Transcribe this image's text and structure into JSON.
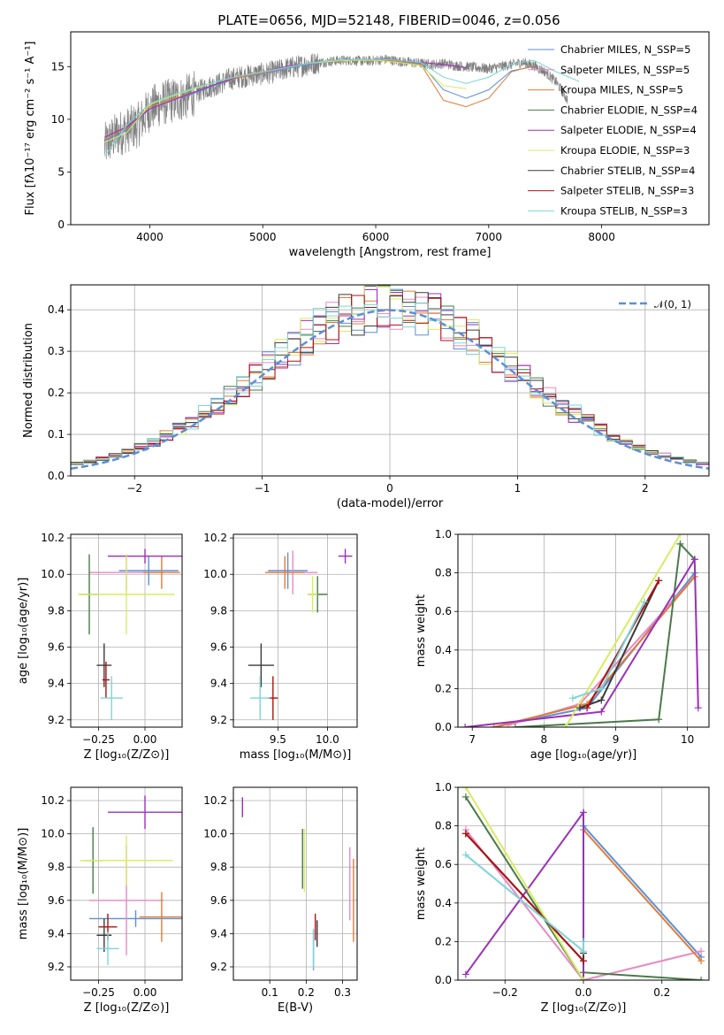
{
  "colors": [
    "#5b8fd8",
    "#e78ac3",
    "#e07b39",
    "#4a7a4a",
    "#9b30b8",
    "#d8ec60",
    "#3a3a3a",
    "#b01010",
    "#7dd4d8"
  ],
  "chart_data": [
    {
      "id": "spectrum",
      "type": "line",
      "title": "PLATE=0656, MJD=52148, FIBERID=0046, z=0.056",
      "xlabel": "wavelength [Angstrom, rest frame]",
      "ylabel": "Flux [fλ10⁻¹⁷ erg cm⁻² s⁻¹ A⁻¹]",
      "xlim": [
        3300,
        8950
      ],
      "ylim": [
        0,
        18.3
      ],
      "xticks": [
        4000,
        5000,
        6000,
        7000,
        8000
      ],
      "yticks": [
        0,
        5,
        10,
        15
      ],
      "grid": false,
      "legend_position": "top-right",
      "legend": [
        "Chabrier MILES, N_SSP=5",
        "Salpeter MILES, N_SSP=5",
        "Kroupa MILES, N_SSP=5",
        "Chabrier ELODIE, N_SSP=4",
        "Salpeter ELODIE, N_SSP=4",
        "Kroupa ELODIE, N_SSP=3",
        "Chabrier STELIB, N_SSP=4",
        "Salpeter STELIB, N_SSP=3",
        "Kroupa STELIB, N_SSP=3"
      ],
      "data_series": {
        "name": "",
        "color": "#808080",
        "x": [
          3600,
          3700,
          3800,
          3900,
          4000,
          4100,
          4200,
          4300,
          4400,
          4500,
          4600,
          4700,
          4800,
          4900,
          5000,
          5100,
          5200,
          5300,
          5400,
          5500,
          5600,
          5700,
          5800,
          5900,
          6000,
          6100,
          6200,
          6300,
          6400,
          6500,
          6600,
          6700,
          6800,
          6900,
          7000,
          7100,
          7200,
          7300,
          7400,
          7500,
          7600,
          7700
        ],
        "y": [
          7.5,
          8.5,
          9.0,
          9.5,
          11.0,
          11.5,
          11.8,
          12.0,
          12.5,
          13.0,
          13.3,
          13.8,
          14.0,
          14.2,
          14.3,
          14.5,
          14.8,
          15.0,
          15.2,
          15.4,
          15.5,
          15.6,
          15.6,
          15.5,
          15.6,
          15.7,
          15.5,
          15.4,
          15.3,
          15.2,
          15.3,
          15.1,
          15.0,
          14.9,
          14.8,
          15.0,
          15.2,
          15.4,
          15.1,
          14.5,
          13.5,
          11.8
        ]
      },
      "model_series": [
        {
          "name": "Chabrier MILES",
          "x": [
            3600,
            3800,
            4000,
            4200,
            4400,
            4600,
            4800,
            5000,
            5200,
            5400,
            5600,
            5800,
            6000,
            6200,
            6400,
            6600,
            6800,
            7000,
            7200,
            7400
          ],
          "y": [
            8.0,
            9.0,
            11.0,
            11.8,
            12.5,
            13.3,
            14.0,
            14.3,
            14.8,
            15.2,
            15.5,
            15.6,
            15.6,
            15.5,
            15.3,
            12.8,
            12.0,
            12.8,
            14.6,
            15.0
          ]
        },
        {
          "name": "Kroupa MILES",
          "x": [
            3600,
            3800,
            4000,
            4200,
            4400,
            4600,
            4800,
            5000,
            5200,
            5400,
            5600,
            5800,
            6000,
            6200,
            6400,
            6600,
            6800,
            7000,
            7200,
            7400
          ],
          "y": [
            8.2,
            9.2,
            11.2,
            11.9,
            12.6,
            13.4,
            14.0,
            14.4,
            14.9,
            15.3,
            15.5,
            15.6,
            15.6,
            15.5,
            15.2,
            11.8,
            11.2,
            12.0,
            14.5,
            15.1
          ]
        },
        {
          "name": "Salpeter ELODIE",
          "x": [
            3600,
            3800,
            4000,
            4200,
            4400,
            4600,
            4800,
            5000,
            5200,
            5400,
            5600,
            5800,
            6000,
            6200,
            6400,
            6600,
            6800
          ],
          "y": [
            8.3,
            9.3,
            11.0,
            11.8,
            12.6,
            13.4,
            14.1,
            14.5,
            15.0,
            15.3,
            15.5,
            15.6,
            15.7,
            15.6,
            15.4,
            15.2,
            14.9
          ]
        },
        {
          "name": "Kroupa ELODIE",
          "x": [
            3600,
            3800,
            4000,
            4200,
            4400,
            4600,
            4800,
            5000,
            5200,
            5400,
            5600,
            5800,
            6000,
            6200,
            6400,
            6600,
            6800
          ],
          "y": [
            7.8,
            8.8,
            11.4,
            12.2,
            12.9,
            13.6,
            14.1,
            14.5,
            14.9,
            15.3,
            15.5,
            15.6,
            15.6,
            15.4,
            15.1,
            13.2,
            12.9
          ]
        },
        {
          "name": "Kroupa STELIB",
          "x": [
            3600,
            3800,
            4000,
            4200,
            4400,
            4600,
            4800,
            5000,
            5200,
            5400,
            5600,
            5800,
            6000,
            6200,
            6400,
            6600,
            6800,
            7000,
            7200,
            7400,
            7600,
            7800
          ],
          "y": [
            6.5,
            9.5,
            11.5,
            12.3,
            13.0,
            13.6,
            14.1,
            14.5,
            14.9,
            15.3,
            15.6,
            15.7,
            15.7,
            15.6,
            15.4,
            14.0,
            13.4,
            14.0,
            15.2,
            15.6,
            14.5,
            13.6
          ]
        }
      ]
    },
    {
      "id": "residuals",
      "type": "step",
      "xlabel": "(data-model)/error",
      "ylabel": "Normed distribution",
      "xlim": [
        -2.5,
        2.5
      ],
      "ylim": [
        0,
        0.46
      ],
      "xticks": [
        -2,
        -1,
        0,
        1,
        2
      ],
      "yticks": [
        0.0,
        0.1,
        0.2,
        0.3,
        0.4
      ],
      "grid": true,
      "legend_position": "top-right",
      "legend": [
        "𝒩(0, 1)"
      ],
      "bin_width": 0.1,
      "bin_start": -2.5
    },
    {
      "id": "age-vs-Z",
      "type": "errorbar",
      "xlabel": "Z [log₁₀(Z/Z⊙)]",
      "ylabel": "age  [log₁₀(age/yr)]",
      "xlim": [
        -0.4,
        0.2
      ],
      "ylim": [
        9.16,
        10.22
      ],
      "xticks": [
        -0.25,
        0.0
      ],
      "xticklabels": [
        "−0.25",
        "0.00"
      ],
      "yticks": [
        9.2,
        9.4,
        9.6,
        9.8,
        10.0,
        10.2
      ],
      "grid": true,
      "points": [
        {
          "x": 0.02,
          "y": 10.02,
          "xe": 0.16,
          "ye": 0.08,
          "c": 0
        },
        {
          "x": -0.1,
          "y": 10.01,
          "xe": 0.2,
          "ye": 0.1,
          "c": 1
        },
        {
          "x": 0.09,
          "y": 10.01,
          "xe": 0.1,
          "ye": 0.09,
          "c": 2
        },
        {
          "x": -0.3,
          "y": 9.89,
          "xe": 0.05,
          "ye": 0.22,
          "c": 3
        },
        {
          "x": 0.0,
          "y": 10.1,
          "xe": 0.2,
          "ye": 0.04,
          "c": 4
        },
        {
          "x": -0.1,
          "y": 9.89,
          "xe": 0.26,
          "ye": 0.22,
          "c": 5
        },
        {
          "x": -0.22,
          "y": 9.5,
          "xe": 0.04,
          "ye": 0.12,
          "c": 6
        },
        {
          "x": -0.21,
          "y": 9.42,
          "xe": 0.02,
          "ye": 0.1,
          "c": 7
        },
        {
          "x": -0.18,
          "y": 9.32,
          "xe": 0.06,
          "ye": 0.12,
          "c": 8
        }
      ]
    },
    {
      "id": "age-vs-mass",
      "type": "errorbar",
      "xlabel": "mass [log₁₀(M/M⊙)]",
      "ylabel": "",
      "xlim": [
        9.05,
        10.3
      ],
      "ylim": [
        9.16,
        10.22
      ],
      "xticks": [
        9.5,
        10.0
      ],
      "xticklabels": [
        "9.5",
        "10.0"
      ],
      "yticks": [
        9.2,
        9.4,
        9.6,
        9.8,
        10.0,
        10.2
      ],
      "grid": true,
      "points": [
        {
          "x": 9.6,
          "y": 10.02,
          "xe": 0.2,
          "ye": 0.1,
          "c": 0
        },
        {
          "x": 9.65,
          "y": 10.01,
          "xe": 0.25,
          "ye": 0.12,
          "c": 1
        },
        {
          "x": 9.57,
          "y": 10.01,
          "xe": 0.2,
          "ye": 0.09,
          "c": 2
        },
        {
          "x": 9.9,
          "y": 9.89,
          "xe": 0.1,
          "ye": 0.1,
          "c": 3
        },
        {
          "x": 10.18,
          "y": 10.1,
          "xe": 0.07,
          "ye": 0.04,
          "c": 4
        },
        {
          "x": 9.85,
          "y": 9.89,
          "xe": 0.05,
          "ye": 0.1,
          "c": 5
        },
        {
          "x": 9.33,
          "y": 9.5,
          "xe": 0.13,
          "ye": 0.12,
          "c": 6
        },
        {
          "x": 9.45,
          "y": 9.32,
          "xe": 0.05,
          "ye": 0.12,
          "c": 7
        },
        {
          "x": 9.32,
          "y": 9.32,
          "xe": 0.1,
          "ye": 0.12,
          "c": 8
        }
      ]
    },
    {
      "id": "mass-weight-vs-age",
      "type": "line",
      "xlabel": "age  [log₁₀(age/yr)]",
      "ylabel": "mass weight",
      "xlim": [
        6.8,
        10.3
      ],
      "ylim": [
        0,
        1.0
      ],
      "xticks": [
        7,
        8,
        9,
        10
      ],
      "yticks": [
        0.0,
        0.2,
        0.4,
        0.6,
        0.8,
        1.0
      ],
      "grid": true,
      "series": [
        {
          "c": 0,
          "x": [
            7.3,
            8.6,
            10.1
          ],
          "y": [
            0.0,
            0.1,
            0.8
          ]
        },
        {
          "c": 1,
          "x": [
            7.5,
            8.5,
            10.1
          ],
          "y": [
            0.01,
            0.12,
            0.78
          ]
        },
        {
          "c": 2,
          "x": [
            7.3,
            8.6,
            10.1
          ],
          "y": [
            0.0,
            0.12,
            0.78
          ]
        },
        {
          "c": 3,
          "x": [
            7.6,
            9.6,
            9.9,
            10.1
          ],
          "y": [
            0.0,
            0.04,
            0.95,
            0.87
          ]
        },
        {
          "c": 4,
          "x": [
            6.9,
            8.8,
            10.1,
            10.15
          ],
          "y": [
            0.0,
            0.08,
            0.87,
            0.1
          ]
        },
        {
          "c": 5,
          "x": [
            8.3,
            9.9
          ],
          "y": [
            0.0,
            1.0
          ]
        },
        {
          "c": 6,
          "x": [
            8.5,
            8.8,
            9.6
          ],
          "y": [
            0.1,
            0.14,
            0.76
          ]
        },
        {
          "c": 7,
          "x": [
            8.6,
            9.6
          ],
          "y": [
            0.1,
            0.76
          ]
        },
        {
          "c": 8,
          "x": [
            8.4,
            8.8,
            9.4
          ],
          "y": [
            0.15,
            0.2,
            0.65
          ]
        }
      ]
    },
    {
      "id": "mass-vs-Z",
      "type": "errorbar",
      "xlabel": "Z [log₁₀(Z/Z⊙)]",
      "ylabel": "mass [log₁₀(M/M⊙)]",
      "xlim": [
        -0.4,
        0.2
      ],
      "ylim": [
        9.12,
        10.28
      ],
      "xticks": [
        -0.25,
        0.0
      ],
      "xticklabels": [
        "−0.25",
        "0.00"
      ],
      "yticks": [
        9.2,
        9.4,
        9.6,
        9.8,
        10.0,
        10.2
      ],
      "grid": true,
      "points": [
        {
          "x": -0.05,
          "y": 9.49,
          "xe": 0.25,
          "ye": 0.05,
          "c": 0
        },
        {
          "x": -0.1,
          "y": 9.6,
          "xe": 0.2,
          "ye": 0.33,
          "c": 1
        },
        {
          "x": 0.09,
          "y": 9.5,
          "xe": 0.12,
          "ye": 0.15,
          "c": 2
        },
        {
          "x": -0.28,
          "y": 9.84,
          "xe": 0.05,
          "ye": 0.2,
          "c": 3
        },
        {
          "x": 0.0,
          "y": 10.13,
          "xe": 0.2,
          "ye": 0.1,
          "c": 4
        },
        {
          "x": -0.1,
          "y": 9.84,
          "xe": 0.25,
          "ye": 0.15,
          "c": 5
        },
        {
          "x": -0.22,
          "y": 9.39,
          "xe": 0.04,
          "ye": 0.1,
          "c": 6
        },
        {
          "x": -0.2,
          "y": 9.44,
          "xe": 0.05,
          "ye": 0.08,
          "c": 7
        },
        {
          "x": -0.2,
          "y": 9.31,
          "xe": 0.06,
          "ye": 0.1,
          "c": 8
        }
      ]
    },
    {
      "id": "mass-vs-EBV",
      "type": "errorbar",
      "xlabel": "E(B-V)",
      "ylabel": "",
      "xlim": [
        0.0,
        0.34
      ],
      "ylim": [
        9.12,
        10.28
      ],
      "xticks": [
        0.1,
        0.2,
        0.3
      ],
      "xticklabels": [
        "0.1",
        "0.2",
        "0.3"
      ],
      "yticks": [
        9.2,
        9.4,
        9.6,
        9.8,
        10.0,
        10.2
      ],
      "grid": true,
      "points": [
        {
          "x": 0.22,
          "y": 9.3,
          "xe": 0,
          "ye": 0.12,
          "c": 0
        },
        {
          "x": 0.32,
          "y": 9.7,
          "xe": 0,
          "ye": 0.22,
          "c": 1
        },
        {
          "x": 0.33,
          "y": 9.6,
          "xe": 0,
          "ye": 0.25,
          "c": 2
        },
        {
          "x": 0.19,
          "y": 9.85,
          "xe": 0,
          "ye": 0.18,
          "c": 3
        },
        {
          "x": 0.025,
          "y": 10.16,
          "xe": 0,
          "ye": 0.06,
          "c": 4
        },
        {
          "x": 0.195,
          "y": 9.84,
          "xe": 0,
          "ye": 0.19,
          "c": 5
        },
        {
          "x": 0.23,
          "y": 9.4,
          "xe": 0,
          "ye": 0.08,
          "c": 6
        },
        {
          "x": 0.225,
          "y": 9.44,
          "xe": 0,
          "ye": 0.08,
          "c": 7
        },
        {
          "x": 0.22,
          "y": 9.31,
          "xe": 0,
          "ye": 0.12,
          "c": 8
        }
      ]
    },
    {
      "id": "mass-weight-vs-Z",
      "type": "line",
      "xlabel": "Z [log₁₀(Z/Z⊙)]",
      "ylabel": "mass weight",
      "xlim": [
        -0.32,
        0.32
      ],
      "ylim": [
        0,
        1.0
      ],
      "xticks": [
        -0.2,
        0.0,
        0.2
      ],
      "xticklabels": [
        "−0.2",
        "0.0",
        "0.2"
      ],
      "yticks": [
        0.0,
        0.2,
        0.4,
        0.6,
        0.8,
        1.0
      ],
      "grid": true,
      "series": [
        {
          "c": 0,
          "x": [
            0.0,
            0.0,
            0.3
          ],
          "y": [
            0.0,
            0.8,
            0.12
          ]
        },
        {
          "c": 1,
          "x": [
            -0.3,
            0.0,
            0.3
          ],
          "y": [
            0.78,
            0.0,
            0.15
          ]
        },
        {
          "c": 2,
          "x": [
            0.0,
            0.0,
            0.3
          ],
          "y": [
            0.0,
            0.78,
            0.1
          ]
        },
        {
          "c": 3,
          "x": [
            -0.3,
            0.0,
            0.0,
            0.3
          ],
          "y": [
            0.95,
            0.0,
            0.04,
            0.0
          ]
        },
        {
          "c": 4,
          "x": [
            -0.3,
            0.0,
            0.0
          ],
          "y": [
            0.03,
            0.87,
            0.0
          ]
        },
        {
          "c": 5,
          "x": [
            -0.3,
            0.0
          ],
          "y": [
            1.0,
            0.0
          ]
        },
        {
          "c": 6,
          "x": [
            -0.3,
            0.0,
            0.0
          ],
          "y": [
            0.76,
            0.1,
            0.14
          ]
        },
        {
          "c": 7,
          "x": [
            -0.3,
            0.0
          ],
          "y": [
            0.76,
            0.1
          ]
        },
        {
          "c": 8,
          "x": [
            -0.3,
            0.0,
            0.0
          ],
          "y": [
            0.65,
            0.15,
            0.2
          ]
        }
      ]
    }
  ]
}
